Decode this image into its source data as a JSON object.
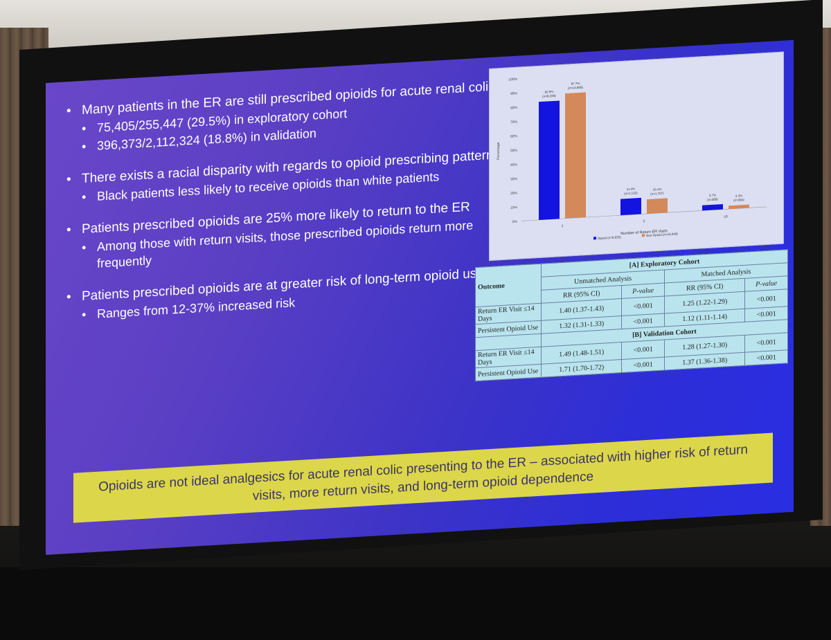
{
  "bullets": [
    {
      "text": "Many patients in the ER are still prescribed opioids for acute renal colic",
      "sub": [
        "75,405/255,447 (29.5%) in exploratory cohort",
        "396,373/2,112,324 (18.8%) in validation"
      ]
    },
    {
      "text": "There exists a racial disparity with regards to opioid prescribing patterns",
      "sub": [
        "Black patients less likely to receive opioids than white patients"
      ]
    },
    {
      "text": "Patients prescribed opioids are 25% more likely to return to the ER",
      "sub": [
        "Among those with return visits, those prescribed opioids return more frequently"
      ]
    },
    {
      "text": "Patients prescribed opioids are at greater risk of long-term opioid use",
      "sub": [
        "Ranges from 12-37% increased risk"
      ]
    }
  ],
  "chart_data": {
    "type": "bar",
    "categories": [
      "1",
      "2",
      "≥3"
    ],
    "series": [
      {
        "name": "Opioid (n=9,925)",
        "color": "#1414e0",
        "values": [
          82.9,
          11.4,
          3.7
        ],
        "labels": [
          "82.9%\n(n=8,226)",
          "11.4%\n(n=1,132)",
          "3.7%\n(n=368)"
        ]
      },
      {
        "name": "Non-Opioid (n=16,949)",
        "color": "#d3895a",
        "values": [
          87.7,
          10.1,
          2.3
        ],
        "labels": [
          "87.7%\n(n=14,858)",
          "10.1%\n(n=1,707)",
          "2.3%\n(n=384)"
        ]
      }
    ],
    "xlabel": "Number of Return ER Visits",
    "ylabel": "Percentage",
    "ylim": [
      0,
      100
    ],
    "yticks": [
      "0%",
      "10%",
      "20%",
      "30%",
      "40%",
      "50%",
      "60%",
      "70%",
      "80%",
      "90%",
      "100%"
    ],
    "legend": "bottom"
  },
  "table": {
    "outcome_label": "Outcome",
    "cohort_a": "[A] Exploratory Cohort",
    "cohort_b": "[B] Validation Cohort",
    "unmatched": "Unmatched Analysis",
    "matched": "Matched Analysis",
    "rr": "RR (95% CI)",
    "pval": "P-value",
    "rows_a": [
      {
        "outcome": "Return ER Visit ≤14 Days",
        "u_rr": "1.40 (1.37-1.43)",
        "u_p": "<0.001",
        "m_rr": "1.25 (1.22-1.29)",
        "m_p": "<0.001"
      },
      {
        "outcome": "Persistent Opioid Use",
        "u_rr": "1.32 (1.31-1.33)",
        "u_p": "<0.001",
        "m_rr": "1.12 (1.11-1.14)",
        "m_p": "<0.001"
      }
    ],
    "rows_b": [
      {
        "outcome": "Return ER Visit ≤14 Days",
        "u_rr": "1.49 (1.48-1.51)",
        "u_p": "<0.001",
        "m_rr": "1.28 (1.27-1.30)",
        "m_p": "<0.001"
      },
      {
        "outcome": "Persistent Opioid Use",
        "u_rr": "1.71 (1.70-1.72)",
        "u_p": "<0.001",
        "m_rr": "1.37 (1.36-1.38)",
        "m_p": "<0.001"
      }
    ]
  },
  "banner": "Opioids are not ideal analgesics for acute renal colic presenting to the ER – associated with higher risk of return visits, more return visits, and long-term opioid dependence"
}
